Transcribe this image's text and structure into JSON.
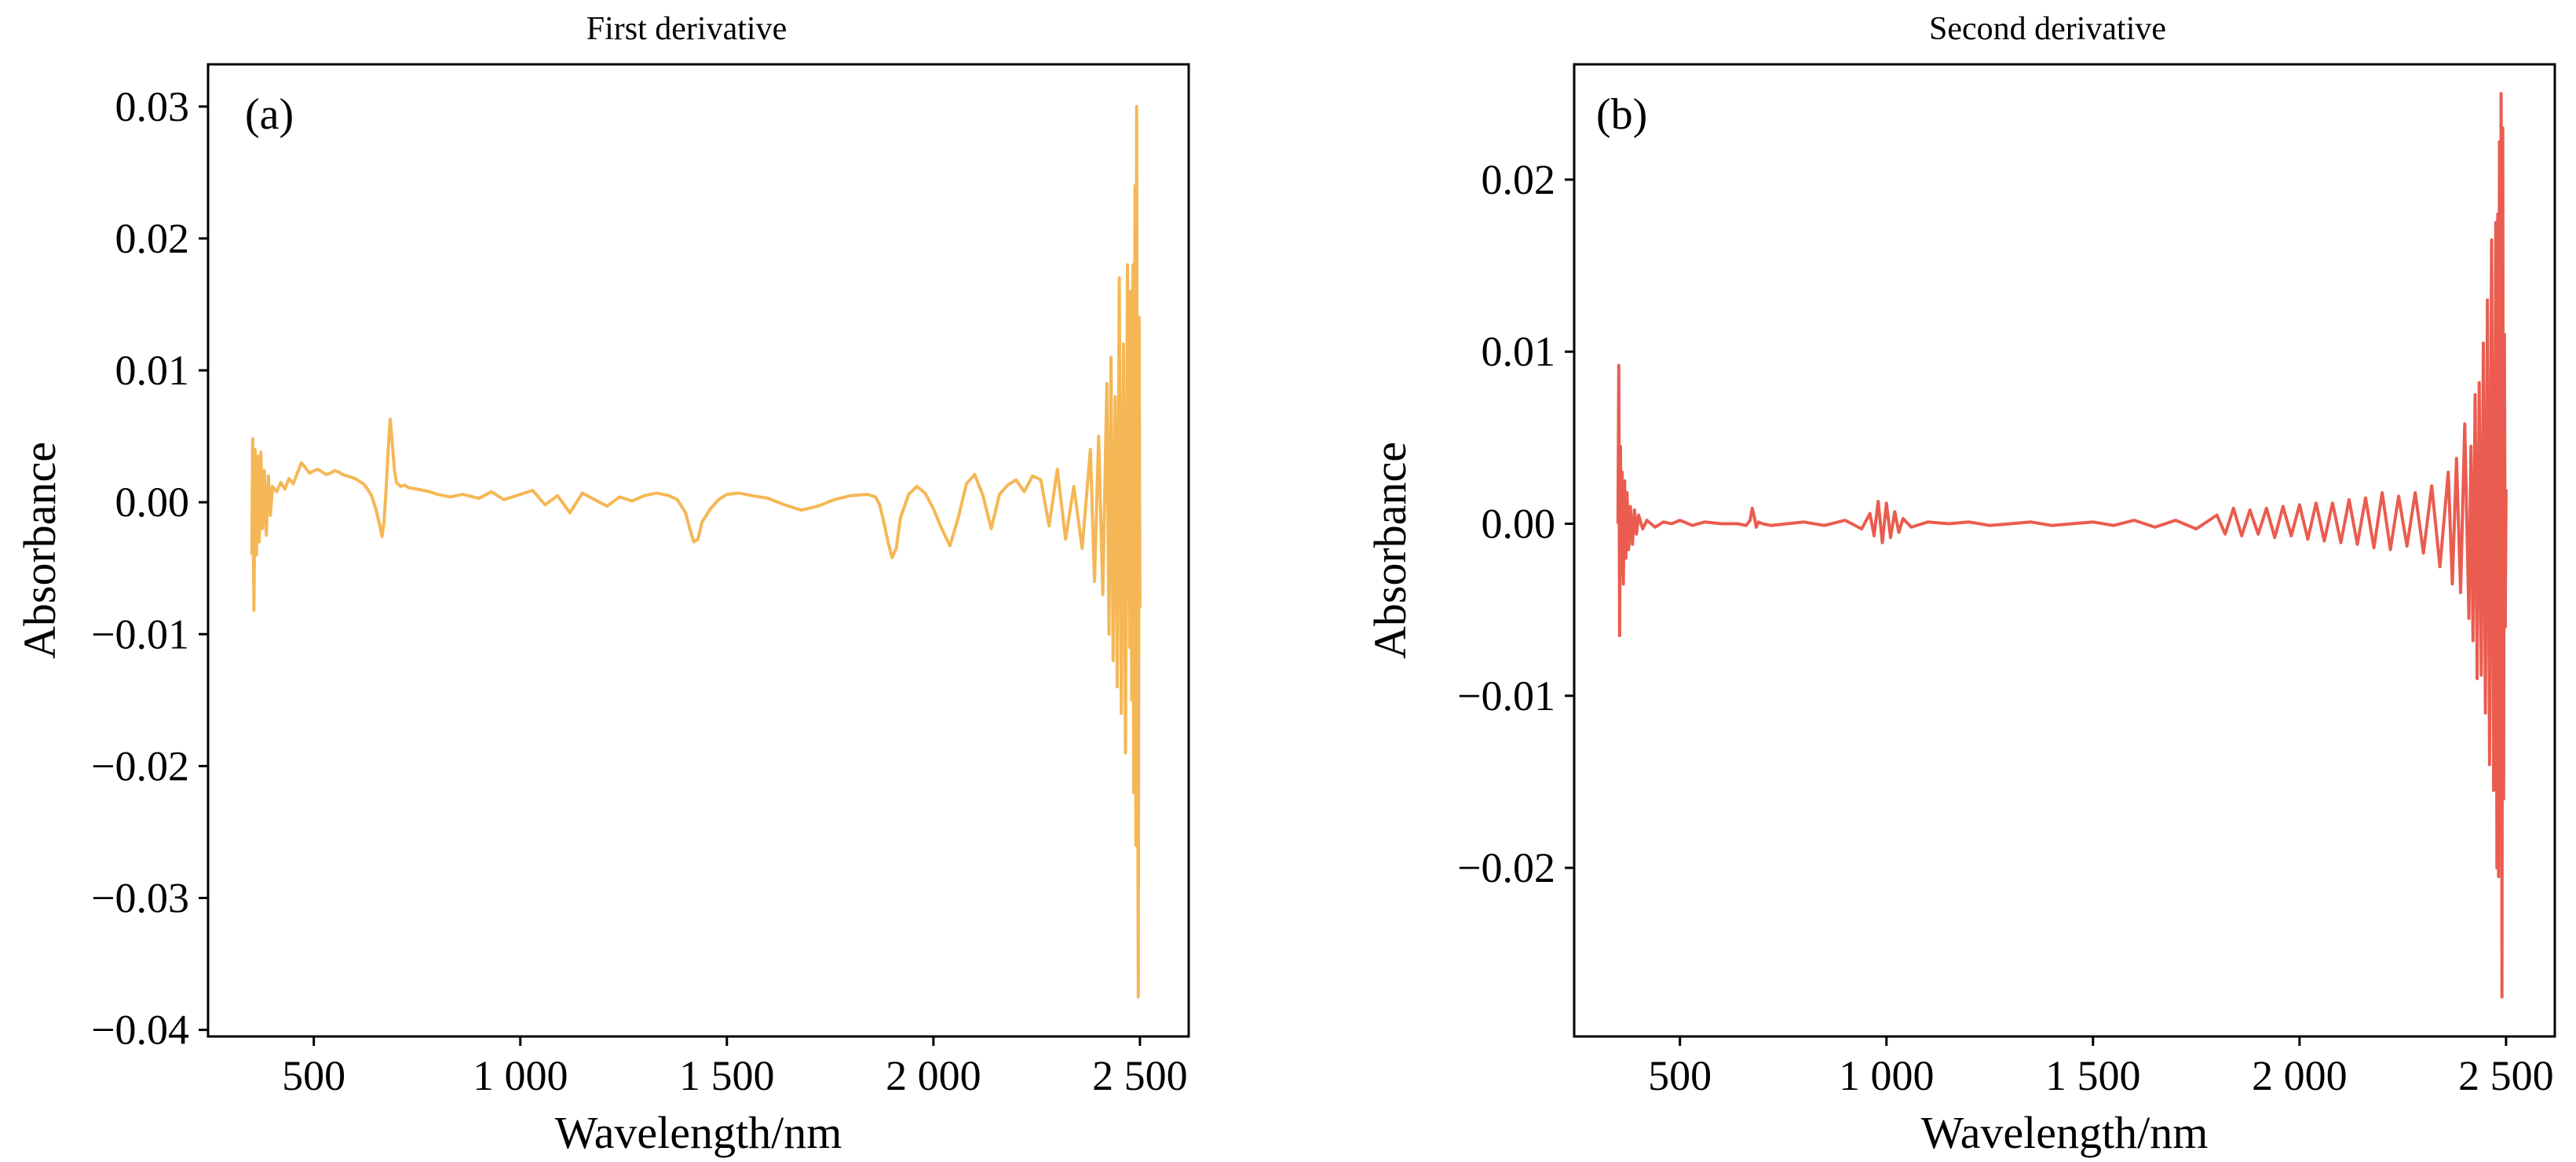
{
  "chart_data": [
    {
      "type": "line",
      "panel_label": "(a)",
      "title": "First derivative",
      "xlabel": "Wavelength/nm",
      "ylabel": "Absorbance",
      "xlim": [
        244,
        2618
      ],
      "ylim": [
        -0.0405,
        0.0332
      ],
      "xticks": [
        500,
        1000,
        1500,
        2000,
        2500
      ],
      "xtick_labels": [
        "500",
        "1 000",
        "1 500",
        "2 000",
        "2 500"
      ],
      "yticks": [
        0.03,
        0.02,
        0.01,
        0.0,
        -0.01,
        -0.02,
        -0.03,
        -0.04
      ],
      "ytick_labels": [
        "0.03",
        "0.02",
        "0.01",
        "0.00",
        "−0.01",
        "−0.02",
        "−0.03",
        "−0.04"
      ],
      "grid": false,
      "color": "#F5B755",
      "series": [
        {
          "x": [
            350,
            352,
            355,
            358,
            361,
            364,
            368,
            372,
            376,
            380,
            385,
            390,
            395,
            400,
            410,
            420,
            430,
            440,
            450,
            460,
            470,
            480,
            490,
            500,
            510,
            520,
            530,
            540,
            550,
            560,
            570,
            580,
            590,
            600,
            610,
            620,
            630,
            640,
            650,
            660,
            665,
            670,
            675,
            680,
            685,
            690,
            695,
            700,
            710,
            720,
            730,
            750,
            780,
            800,
            830,
            860,
            900,
            930,
            960,
            1000,
            1030,
            1060,
            1090,
            1120,
            1150,
            1180,
            1210,
            1240,
            1270,
            1300,
            1330,
            1360,
            1380,
            1400,
            1410,
            1420,
            1430,
            1440,
            1460,
            1480,
            1500,
            1530,
            1560,
            1600,
            1640,
            1680,
            1720,
            1760,
            1800,
            1840,
            1860,
            1870,
            1880,
            1890,
            1900,
            1910,
            1920,
            1940,
            1960,
            1980,
            2000,
            2020,
            2040,
            2060,
            2080,
            2100,
            2120,
            2140,
            2160,
            2180,
            2200,
            2220,
            2240,
            2260,
            2280,
            2300,
            2320,
            2340,
            2360,
            2380,
            2390,
            2400,
            2410,
            2420,
            2425,
            2430,
            2435,
            2440,
            2445,
            2450,
            2455,
            2460,
            2465,
            2470,
            2475,
            2478,
            2480,
            2483,
            2485,
            2488,
            2490,
            2492,
            2494,
            2496,
            2498,
            2500
          ],
          "y": [
            -0.004,
            0.0048,
            -0.0082,
            0.004,
            -0.004,
            0.0035,
            -0.003,
            0.0038,
            -0.002,
            0.0024,
            -0.0025,
            0.002,
            -0.001,
            0.0012,
            0.0008,
            0.0015,
            0.001,
            0.0018,
            0.0014,
            0.0022,
            0.003,
            0.0026,
            0.0022,
            0.0024,
            0.0025,
            0.0023,
            0.0021,
            0.0022,
            0.0024,
            0.0023,
            0.0021,
            0.002,
            0.0019,
            0.0018,
            0.0016,
            0.0014,
            0.001,
            0.0005,
            -0.0005,
            -0.0018,
            -0.0026,
            -0.0015,
            0.001,
            0.004,
            0.0063,
            0.0045,
            0.0025,
            0.0015,
            0.0012,
            0.0013,
            0.0011,
            0.001,
            0.0008,
            0.0006,
            0.0004,
            0.0006,
            0.0003,
            0.0008,
            0.0002,
            0.0006,
            0.0009,
            -0.0002,
            0.0005,
            -0.0008,
            0.0007,
            0.0002,
            -0.0003,
            0.0004,
            0.0001,
            0.0005,
            0.0007,
            0.0005,
            0.0002,
            -0.0008,
            -0.002,
            -0.003,
            -0.0028,
            -0.0015,
            -0.0005,
            0.0002,
            0.0006,
            0.0007,
            0.0005,
            0.0003,
            -0.0002,
            -0.0006,
            -0.0003,
            0.0002,
            0.0005,
            0.0006,
            0.0004,
            -0.0002,
            -0.0015,
            -0.003,
            -0.0042,
            -0.0035,
            -0.0012,
            0.0006,
            0.0012,
            0.0007,
            -0.0005,
            -0.002,
            -0.0033,
            -0.0012,
            0.0014,
            0.0021,
            0.0005,
            -0.002,
            0.0006,
            0.0013,
            0.0017,
            0.0008,
            0.002,
            0.0017,
            -0.0018,
            0.0025,
            -0.0028,
            0.0012,
            -0.0035,
            0.004,
            -0.006,
            0.005,
            -0.007,
            0.009,
            -0.01,
            0.011,
            -0.012,
            0.008,
            -0.014,
            0.017,
            -0.016,
            0.012,
            -0.019,
            0.018,
            -0.011,
            0.016,
            -0.015,
            0.018,
            -0.022,
            0.024,
            -0.026,
            0.03,
            -0.012,
            -0.0375,
            0.014,
            -0.008
          ]
        }
      ]
    },
    {
      "type": "line",
      "panel_label": "(b)",
      "title": "Second derivative",
      "xlabel": "Wavelength/nm",
      "ylabel": "Absorbance",
      "xlim": [
        244,
        2618
      ],
      "ylim": [
        -0.0298,
        0.0267
      ],
      "xticks": [
        500,
        1000,
        1500,
        2000,
        2500
      ],
      "xtick_labels": [
        "500",
        "1 000",
        "1 500",
        "2 000",
        "2 500"
      ],
      "yticks": [
        0.02,
        0.01,
        0.0,
        -0.01,
        -0.02
      ],
      "ytick_labels": [
        "0.02",
        "0.01",
        "0.00",
        "−0.01",
        "−0.02"
      ],
      "grid": false,
      "color": "#EA5C4F",
      "series": [
        {
          "x": [
            350,
            352,
            354,
            356,
            358,
            360,
            363,
            366,
            369,
            372,
            376,
            380,
            385,
            390,
            395,
            400,
            410,
            420,
            440,
            460,
            480,
            500,
            530,
            560,
            600,
            640,
            660,
            670,
            675,
            680,
            685,
            690,
            700,
            720,
            760,
            800,
            850,
            900,
            940,
            960,
            970,
            980,
            990,
            1000,
            1010,
            1020,
            1030,
            1040,
            1060,
            1100,
            1150,
            1200,
            1250,
            1300,
            1350,
            1400,
            1450,
            1500,
            1550,
            1600,
            1650,
            1700,
            1750,
            1800,
            1820,
            1840,
            1860,
            1880,
            1900,
            1920,
            1940,
            1960,
            1980,
            2000,
            2020,
            2040,
            2060,
            2080,
            2100,
            2120,
            2140,
            2160,
            2180,
            2200,
            2220,
            2240,
            2260,
            2280,
            2300,
            2320,
            2340,
            2360,
            2370,
            2380,
            2390,
            2400,
            2410,
            2415,
            2420,
            2425,
            2430,
            2435,
            2440,
            2445,
            2450,
            2455,
            2460,
            2465,
            2470,
            2475,
            2478,
            2480,
            2482,
            2484,
            2486,
            2488,
            2490,
            2492,
            2494,
            2496,
            2498,
            2500
          ],
          "y": [
            0.0,
            0.0092,
            -0.0065,
            0.0045,
            -0.003,
            0.003,
            -0.0035,
            0.0025,
            -0.002,
            0.0018,
            -0.0015,
            0.001,
            -0.0012,
            0.0008,
            -0.0006,
            0.0005,
            -0.0003,
            0.0002,
            -0.0002,
            0.0001,
            0.0,
            0.0002,
            -0.0001,
            0.0001,
            0.0,
            0.0,
            -0.0001,
            0.0002,
            0.0009,
            0.0004,
            -0.0002,
            0.0001,
            0.0,
            -0.0001,
            0.0,
            0.0001,
            -0.0001,
            0.0002,
            -0.0003,
            0.0006,
            -0.0007,
            0.0013,
            -0.0011,
            0.0012,
            -0.0008,
            0.0007,
            -0.0005,
            0.0003,
            -0.0002,
            0.0001,
            0.0,
            0.0001,
            -0.0001,
            0.0,
            0.0001,
            -0.0001,
            0.0,
            0.0001,
            -0.0001,
            0.0002,
            -0.0002,
            0.0002,
            -0.0003,
            0.0005,
            -0.0006,
            0.0009,
            -0.0007,
            0.0008,
            -0.0006,
            0.0009,
            -0.0008,
            0.001,
            -0.0007,
            0.0011,
            -0.0009,
            0.0012,
            -0.001,
            0.0012,
            -0.0011,
            0.0014,
            -0.0012,
            0.0015,
            -0.0014,
            0.0018,
            -0.0015,
            0.0016,
            -0.0013,
            0.0018,
            -0.0017,
            0.0022,
            -0.0025,
            0.003,
            -0.0035,
            0.0038,
            -0.004,
            0.0058,
            -0.0055,
            0.0045,
            -0.0068,
            0.0075,
            -0.009,
            0.0082,
            -0.0088,
            0.0105,
            -0.011,
            0.013,
            -0.014,
            0.0165,
            -0.0155,
            0.0175,
            -0.02,
            0.018,
            -0.0205,
            0.0222,
            -0.018,
            0.025,
            -0.0275,
            0.023,
            -0.016,
            0.011,
            -0.006,
            0.002
          ]
        }
      ]
    }
  ]
}
